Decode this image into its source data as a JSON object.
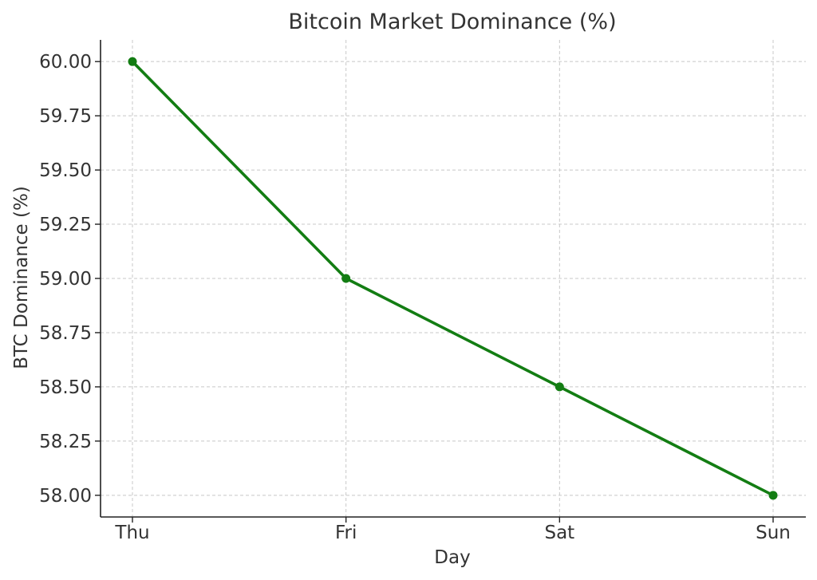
{
  "chart_data": {
    "type": "line",
    "title": "Bitcoin Market Dominance (%)",
    "xlabel": "Day",
    "ylabel": "BTC Dominance (%)",
    "categories": [
      "Thu",
      "Fri",
      "Sat",
      "Sun"
    ],
    "series": [
      {
        "values": [
          60.0,
          59.0,
          58.5,
          58.0
        ],
        "color": "#137d13",
        "marker": "circle"
      }
    ],
    "ylim": [
      57.9,
      60.1
    ],
    "yticks": [
      58.0,
      58.25,
      58.5,
      58.75,
      59.0,
      59.25,
      59.5,
      59.75,
      60.0
    ],
    "ytick_labels": [
      "58.00",
      "58.25",
      "58.50",
      "58.75",
      "59.00",
      "59.25",
      "59.50",
      "59.75",
      "60.00"
    ],
    "grid": true,
    "grid_style": "dashed"
  }
}
